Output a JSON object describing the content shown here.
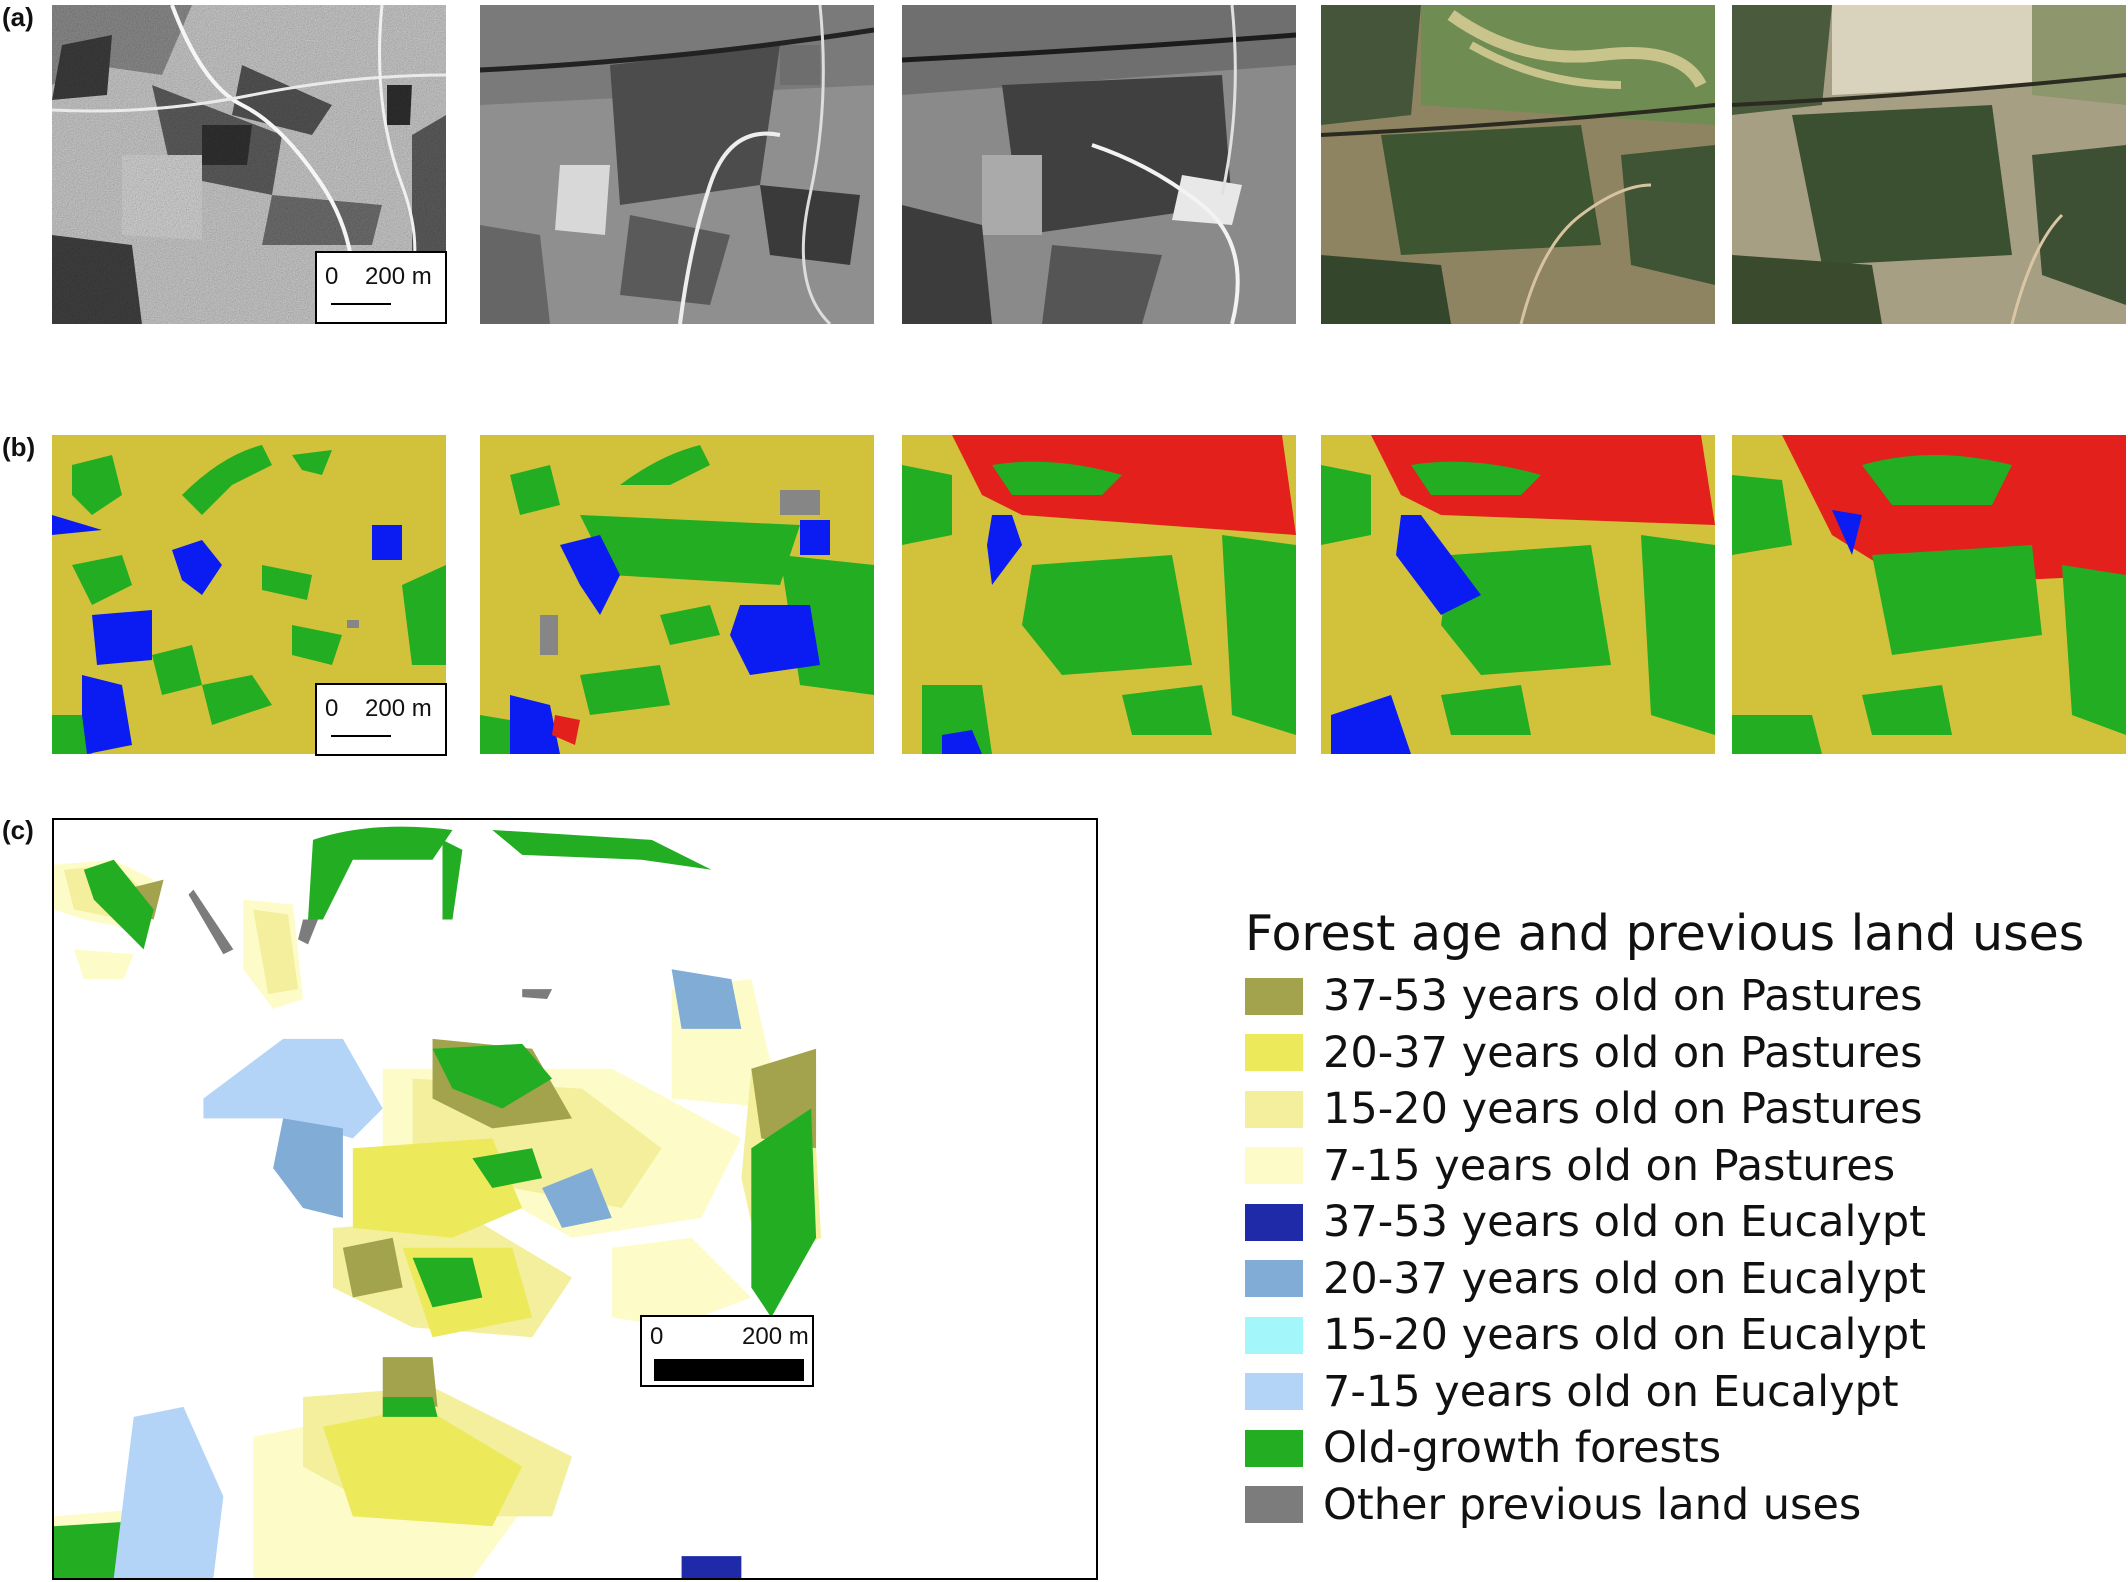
{
  "panels": {
    "a": {
      "label": "(a)"
    },
    "b": {
      "label": "(b)"
    },
    "c": {
      "label": "(c)"
    }
  },
  "scalebars": {
    "a": {
      "zero": "0",
      "dist": "200 m"
    },
    "b": {
      "zero": "0",
      "dist": "200 m"
    },
    "c": {
      "zero": "0",
      "dist": "200 m"
    }
  },
  "colors": {
    "pasture": "#d2c23b",
    "forest": "#22ad22",
    "eucalypt": "#0a1cf2",
    "red": "#e3201c",
    "gray": "#868686",
    "c_3753_past": "#a3a24d",
    "c_2037_past": "#ece95a",
    "c_1520_past": "#f3ef9d",
    "c_715_past": "#fdfcc8",
    "c_3753_euc": "#1e2aa8",
    "c_2037_euc": "#80acd6",
    "c_1520_euc": "#a3f7fb",
    "c_715_euc": "#b3d4f6",
    "c_old": "#22ad22",
    "c_other": "#7c7c7c"
  },
  "legend": {
    "title": "Forest age and previous land uses",
    "items": [
      {
        "label": "37-53 years old on Pastures",
        "color": "#a3a24d"
      },
      {
        "label": "20-37 years old on Pastures",
        "color": "#ece95a"
      },
      {
        "label": "15-20 years old on Pastures",
        "color": "#f3ef9d"
      },
      {
        "label": "7-15 years old on Pastures",
        "color": "#fdfcc8"
      },
      {
        "label": "37-53 years old on Eucalypt",
        "color": "#1e2aa8"
      },
      {
        "label": "20-37 years old on Eucalypt",
        "color": "#80acd6"
      },
      {
        "label": "15-20 years old on Eucalypt",
        "color": "#a3f7fb"
      },
      {
        "label": "7-15 years old on Eucalypt",
        "color": "#b3d4f6"
      },
      {
        "label": "Old-growth forests",
        "color": "#22ad22"
      },
      {
        "label": "Other previous land uses",
        "color": "#7c7c7c"
      }
    ]
  }
}
